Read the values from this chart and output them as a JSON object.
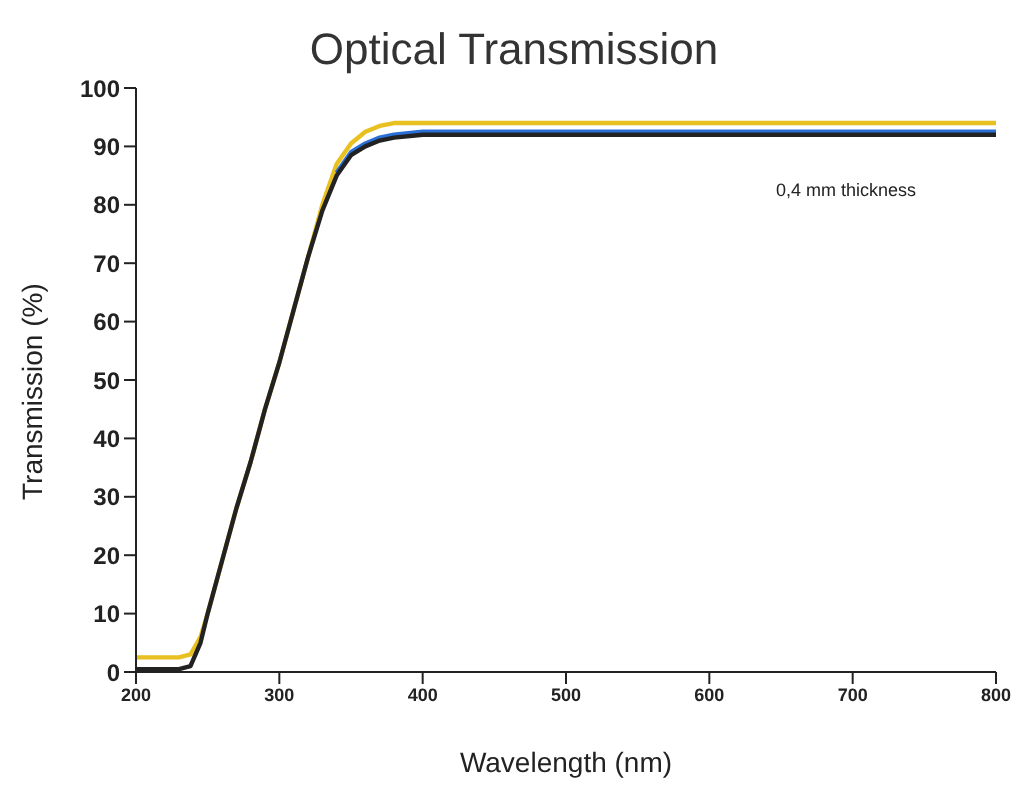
{
  "chart_data": {
    "type": "line",
    "title": "Optical Transmission",
    "xlabel": "Wavelength (nm)",
    "ylabel": "Transmission (%)",
    "annotations": [
      "0,4 mm thickness"
    ],
    "x": [
      200,
      210,
      220,
      230,
      238,
      245,
      250,
      260,
      270,
      280,
      290,
      300,
      310,
      320,
      330,
      340,
      350,
      360,
      370,
      380,
      400,
      450,
      500,
      550,
      600,
      650,
      700,
      750,
      800
    ],
    "series": [
      {
        "color": "#e8c020",
        "values": [
          2.5,
          2.5,
          2.5,
          2.5,
          3,
          6,
          10,
          19,
          28,
          36,
          45,
          53,
          62,
          71,
          80,
          87,
          90.5,
          92.5,
          93.5,
          94,
          94,
          94,
          94,
          94,
          94,
          94,
          94,
          94,
          94
        ]
      },
      {
        "color": "#2a6fd6",
        "values": [
          null,
          null,
          null,
          null,
          null,
          null,
          null,
          null,
          null,
          null,
          null,
          null,
          null,
          null,
          null,
          85.5,
          89,
          90.5,
          91.5,
          92,
          92.5,
          92.5,
          92.5,
          92.5,
          92.5,
          92.5,
          92.5,
          92.5,
          92.5
        ]
      },
      {
        "color": "#222222",
        "values": [
          0.5,
          0.5,
          0.5,
          0.5,
          1,
          5,
          10,
          19,
          28,
          36,
          45,
          53,
          62,
          71,
          79,
          85,
          88.5,
          90,
          91,
          91.5,
          92,
          92,
          92,
          92,
          92,
          92,
          92,
          92,
          92
        ]
      }
    ],
    "xlim": [
      200,
      800
    ],
    "xticks": [
      200,
      300,
      400,
      500,
      600,
      700,
      800
    ],
    "ylim": [
      0,
      100
    ],
    "yticks": [
      0,
      10,
      20,
      30,
      40,
      50,
      60,
      70,
      80,
      90,
      100
    ],
    "grid": false,
    "legend": false,
    "marker": "none",
    "line_style": "solid"
  }
}
